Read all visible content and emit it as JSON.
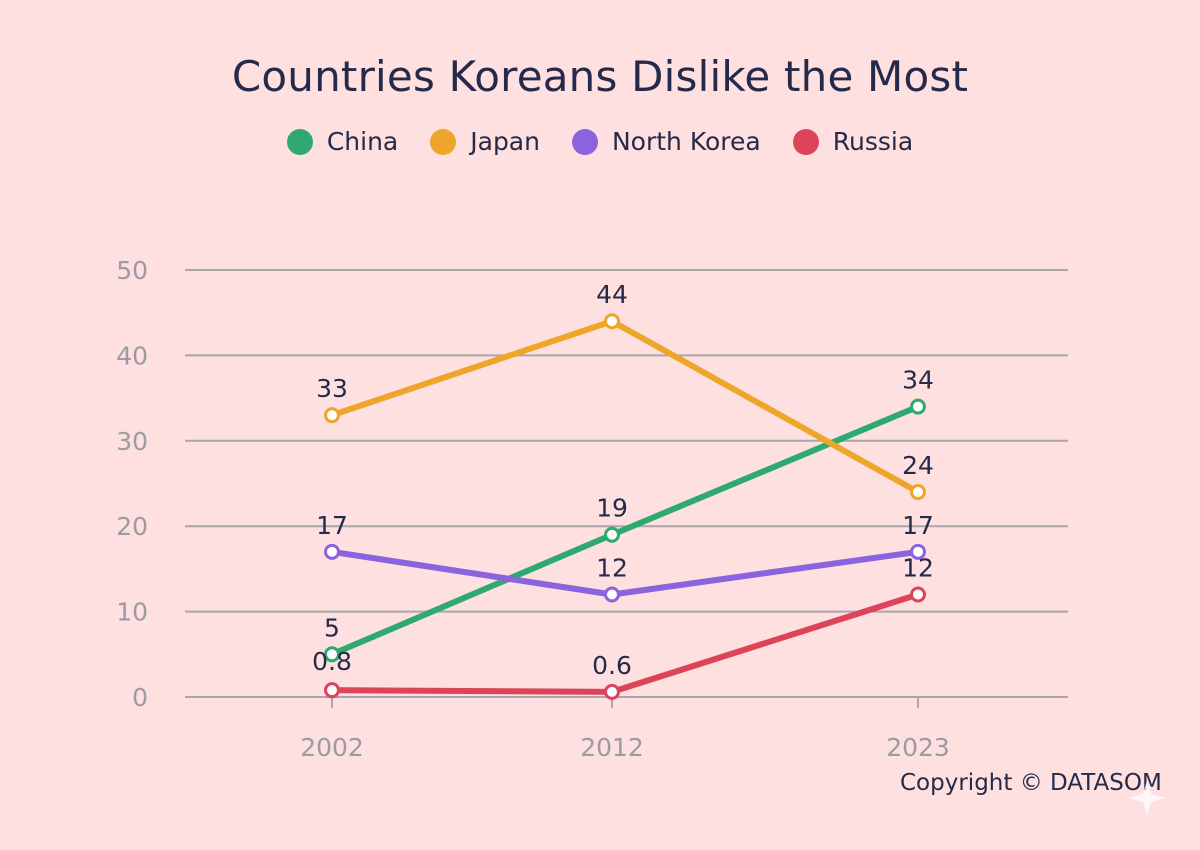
{
  "chart_data": {
    "type": "line",
    "title": "Countries Koreans Dislike the Most",
    "categories": [
      "2002",
      "2012",
      "2023"
    ],
    "ylim": [
      0,
      50
    ],
    "yticks": [
      "0",
      "10",
      "20",
      "30",
      "40",
      "50"
    ],
    "grid": true,
    "legend_position": "top",
    "series": [
      {
        "name": "China",
        "color": "#2eaa70",
        "values": [
          5,
          19,
          34
        ],
        "labels": [
          "5",
          "19",
          "34"
        ]
      },
      {
        "name": "Japan",
        "color": "#eda52a",
        "values": [
          33,
          44,
          24
        ],
        "labels": [
          "33",
          "44",
          "24"
        ]
      },
      {
        "name": "North Korea",
        "color": "#8b63de",
        "values": [
          17,
          12,
          17
        ],
        "labels": [
          "17",
          "12",
          "17"
        ]
      },
      {
        "name": "Russia",
        "color": "#dd4459",
        "values": [
          0.8,
          0.6,
          12
        ],
        "labels": [
          "0.8",
          "0.6",
          "12"
        ]
      }
    ]
  },
  "footer": {
    "copyright": "Copyright © DATASOM"
  }
}
